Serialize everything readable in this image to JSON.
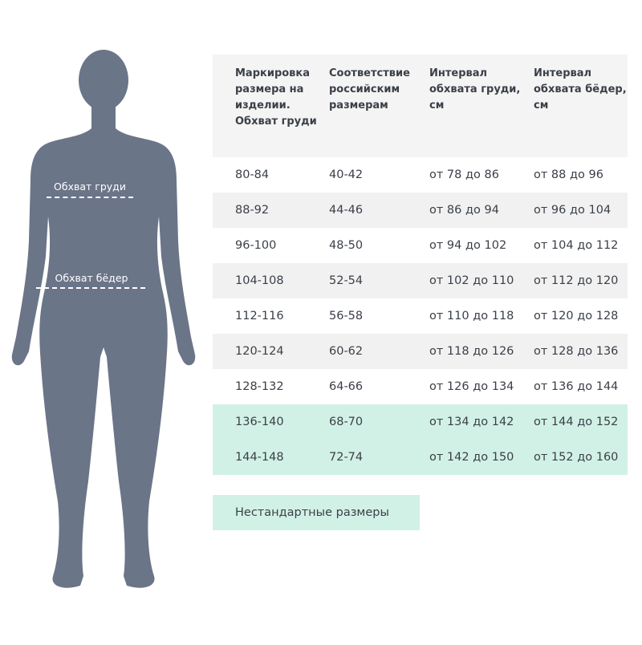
{
  "figure": {
    "color": "#6b7588",
    "chest_label": "Обхват груди",
    "hips_label": "Обхват бёдер"
  },
  "table": {
    "headers": [
      "Маркировка размера на изделии. Обхват груди",
      "Соответствие российским размерам",
      "Интервал обхвата груди, см",
      "Интервал обхвата бёдер, см"
    ],
    "rows": [
      [
        "80-84",
        "40-42",
        "от 78 до 86",
        "от 88 до 96"
      ],
      [
        "88-92",
        "44-46",
        "от 86 до 94",
        "от 96 до 104"
      ],
      [
        "96-100",
        "48-50",
        "от 94 до 102",
        "от 104 до 112"
      ],
      [
        "104-108",
        "52-54",
        "от 102 до 110",
        "от 112 до 120"
      ],
      [
        "112-116",
        "56-58",
        "от 110 до 118",
        "от 120 до 128"
      ],
      [
        "120-124",
        "60-62",
        "от 118 до 126",
        "от 128 до 136"
      ],
      [
        "128-132",
        "64-66",
        "от 126 до 134",
        "от 136 до 144"
      ],
      [
        "136-140",
        "68-70",
        "от 134 до 142",
        "от 144 до 152"
      ],
      [
        "144-148",
        "72-74",
        "от 142 до 150",
        "от 152 до 160"
      ]
    ],
    "highlight_color": "#d2f1e6",
    "alt_row_color": "#f1f1f1"
  },
  "nonstandard_label": "Нестандартные размеры"
}
